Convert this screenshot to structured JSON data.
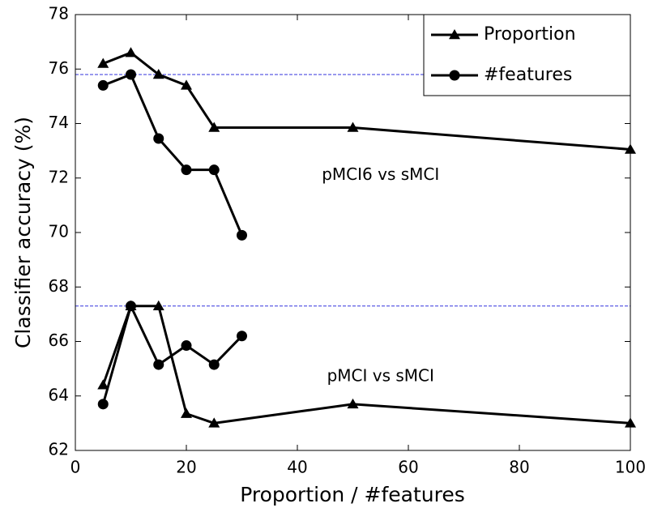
{
  "chart_data": {
    "type": "line",
    "xlabel": "Proportion / #features",
    "ylabel": "Classifier accuracy (%)",
    "xlim": [
      0,
      100
    ],
    "xticks": [
      0,
      20,
      40,
      60,
      80,
      100
    ],
    "ylim": [
      62,
      78
    ],
    "yticks": [
      62,
      64,
      66,
      68,
      70,
      72,
      74,
      76,
      78
    ],
    "legend": "upper right",
    "series": [
      {
        "name": "Proportion",
        "marker": "triangle",
        "color": "#000000",
        "x": [
          5,
          10,
          15,
          20,
          25,
          50,
          100
        ],
        "lines": [
          [
            76.2,
            76.6,
            75.8,
            75.4,
            73.85,
            73.85,
            73.05
          ],
          [
            64.4,
            67.3,
            67.3,
            63.35,
            63.0,
            63.7,
            63.0
          ]
        ]
      },
      {
        "name": "#features",
        "marker": "circle",
        "color": "#000000",
        "x": [
          5,
          10,
          15,
          20,
          25,
          30
        ],
        "lines": [
          [
            75.4,
            75.8,
            73.45,
            72.3,
            72.3,
            69.9
          ],
          [
            63.7,
            67.3,
            65.15,
            65.85,
            65.15,
            66.2
          ]
        ]
      }
    ],
    "reference_lines": {
      "color": "#3333dd",
      "values": [
        75.8,
        67.3
      ]
    },
    "annotations": [
      {
        "text": "pMCI6 vs sMCI",
        "x": 55,
        "y": 72.1
      },
      {
        "text": "pMCI vs sMCI",
        "x": 55,
        "y": 64.7
      }
    ]
  }
}
